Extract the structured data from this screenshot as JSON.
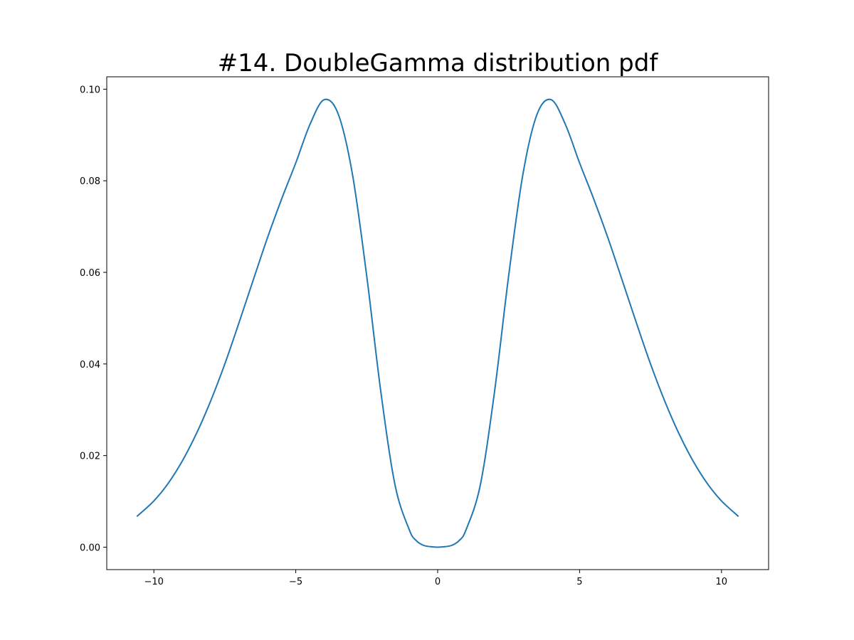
{
  "chart_data": {
    "type": "line",
    "title": "#14. DoubleGamma distribution pdf",
    "xlabel": "",
    "ylabel": "",
    "xlim": [
      -11.66,
      11.66
    ],
    "ylim": [
      -0.0049,
      0.1027
    ],
    "x_ticks": [
      -10,
      -5,
      0,
      5,
      10
    ],
    "x_tick_labels": [
      "−10",
      "−5",
      "0",
      "5",
      "10"
    ],
    "y_ticks": [
      0.0,
      0.02,
      0.04,
      0.06,
      0.08,
      0.1
    ],
    "y_tick_labels": [
      "0.00",
      "0.02",
      "0.04",
      "0.06",
      "0.08",
      "0.10"
    ],
    "grid": false,
    "legend": "none",
    "series": [
      {
        "color": "#1f77b4",
        "x": [
          -10.6,
          -10,
          -9.5,
          -9,
          -8.5,
          -8,
          -7.5,
          -7,
          -6.5,
          -6,
          -5.5,
          -5,
          -4.5,
          -4,
          -3.5,
          -3,
          -2.5,
          -2,
          -1.5,
          -1,
          -0.75,
          -0.5,
          -0.25,
          0,
          0.25,
          0.5,
          0.75,
          1,
          1.5,
          2,
          2.5,
          3,
          3.5,
          4,
          4.5,
          5,
          5.5,
          6,
          6.5,
          7,
          7.5,
          8,
          8.5,
          9,
          9.5,
          10,
          10.6
        ],
        "y": [
          0.0067,
          0.0101,
          0.0139,
          0.0188,
          0.0248,
          0.0319,
          0.04,
          0.049,
          0.0583,
          0.0675,
          0.076,
          0.0839,
          0.0923,
          0.0977,
          0.0945,
          0.0813,
          0.0592,
          0.0338,
          0.0135,
          0.0038,
          0.0014,
          0.0004,
          0.0001,
          0.0,
          0.0001,
          0.0004,
          0.0014,
          0.0038,
          0.0135,
          0.0338,
          0.0592,
          0.0813,
          0.0945,
          0.0977,
          0.0923,
          0.0839,
          0.076,
          0.0675,
          0.0583,
          0.049,
          0.04,
          0.0319,
          0.0248,
          0.0188,
          0.0139,
          0.0101,
          0.0067
        ]
      }
    ]
  }
}
